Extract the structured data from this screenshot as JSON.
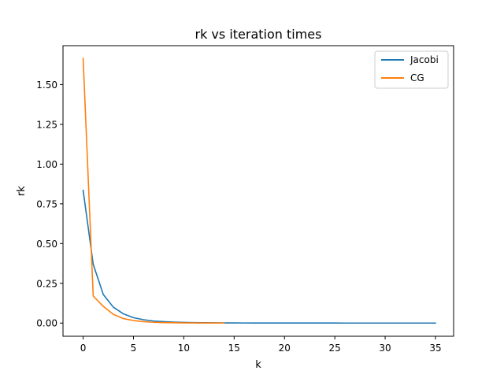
{
  "chart_data": {
    "type": "line",
    "title": "rk vs iteration times",
    "xlabel": "k",
    "ylabel": "rk",
    "xlim": [
      -2.0,
      36.8
    ],
    "ylim": [
      -0.083,
      1.745
    ],
    "xticks": [
      0,
      5,
      10,
      15,
      20,
      25,
      30,
      35
    ],
    "xtick_labels": [
      "0",
      "5",
      "10",
      "15",
      "20",
      "25",
      "30",
      "35"
    ],
    "yticks": [
      0.0,
      0.25,
      0.5,
      0.75,
      1.0,
      1.25,
      1.5
    ],
    "ytick_labels": [
      "0.00",
      "0.25",
      "0.50",
      "0.75",
      "1.00",
      "1.25",
      "1.50"
    ],
    "grid": false,
    "legend_position": "top-right",
    "series": [
      {
        "name": "Jacobi",
        "color": "#1f77b4",
        "x": [
          0,
          1,
          2,
          3,
          4,
          5,
          6,
          7,
          8,
          9,
          10,
          11,
          12,
          13,
          14,
          15,
          16,
          17,
          18,
          19,
          20,
          21,
          22,
          23,
          24,
          25,
          26,
          27,
          28,
          29,
          30,
          31,
          32,
          33,
          34,
          35
        ],
        "y": [
          0.835,
          0.37,
          0.18,
          0.1,
          0.058,
          0.034,
          0.021,
          0.013,
          0.009,
          0.006,
          0.004,
          0.003,
          0.002,
          0.0015,
          0.0011,
          0.0008,
          0.0006,
          0.0005,
          0.0004,
          0.0003,
          0.0002,
          0.0002,
          0.0001,
          0.0001,
          0.0001,
          0.0001,
          0,
          0,
          0,
          0,
          0,
          0,
          0,
          0,
          0,
          0
        ]
      },
      {
        "name": "CG",
        "color": "#ff7f0e",
        "x": [
          0,
          1,
          2,
          3,
          4,
          5,
          6,
          7,
          8,
          9,
          10,
          11,
          12,
          13,
          14
        ],
        "y": [
          1.665,
          0.17,
          0.105,
          0.055,
          0.028,
          0.016,
          0.009,
          0.005,
          0.003,
          0.002,
          0.001,
          0.0007,
          0.0004,
          0.0002,
          0.0001
        ]
      }
    ]
  }
}
